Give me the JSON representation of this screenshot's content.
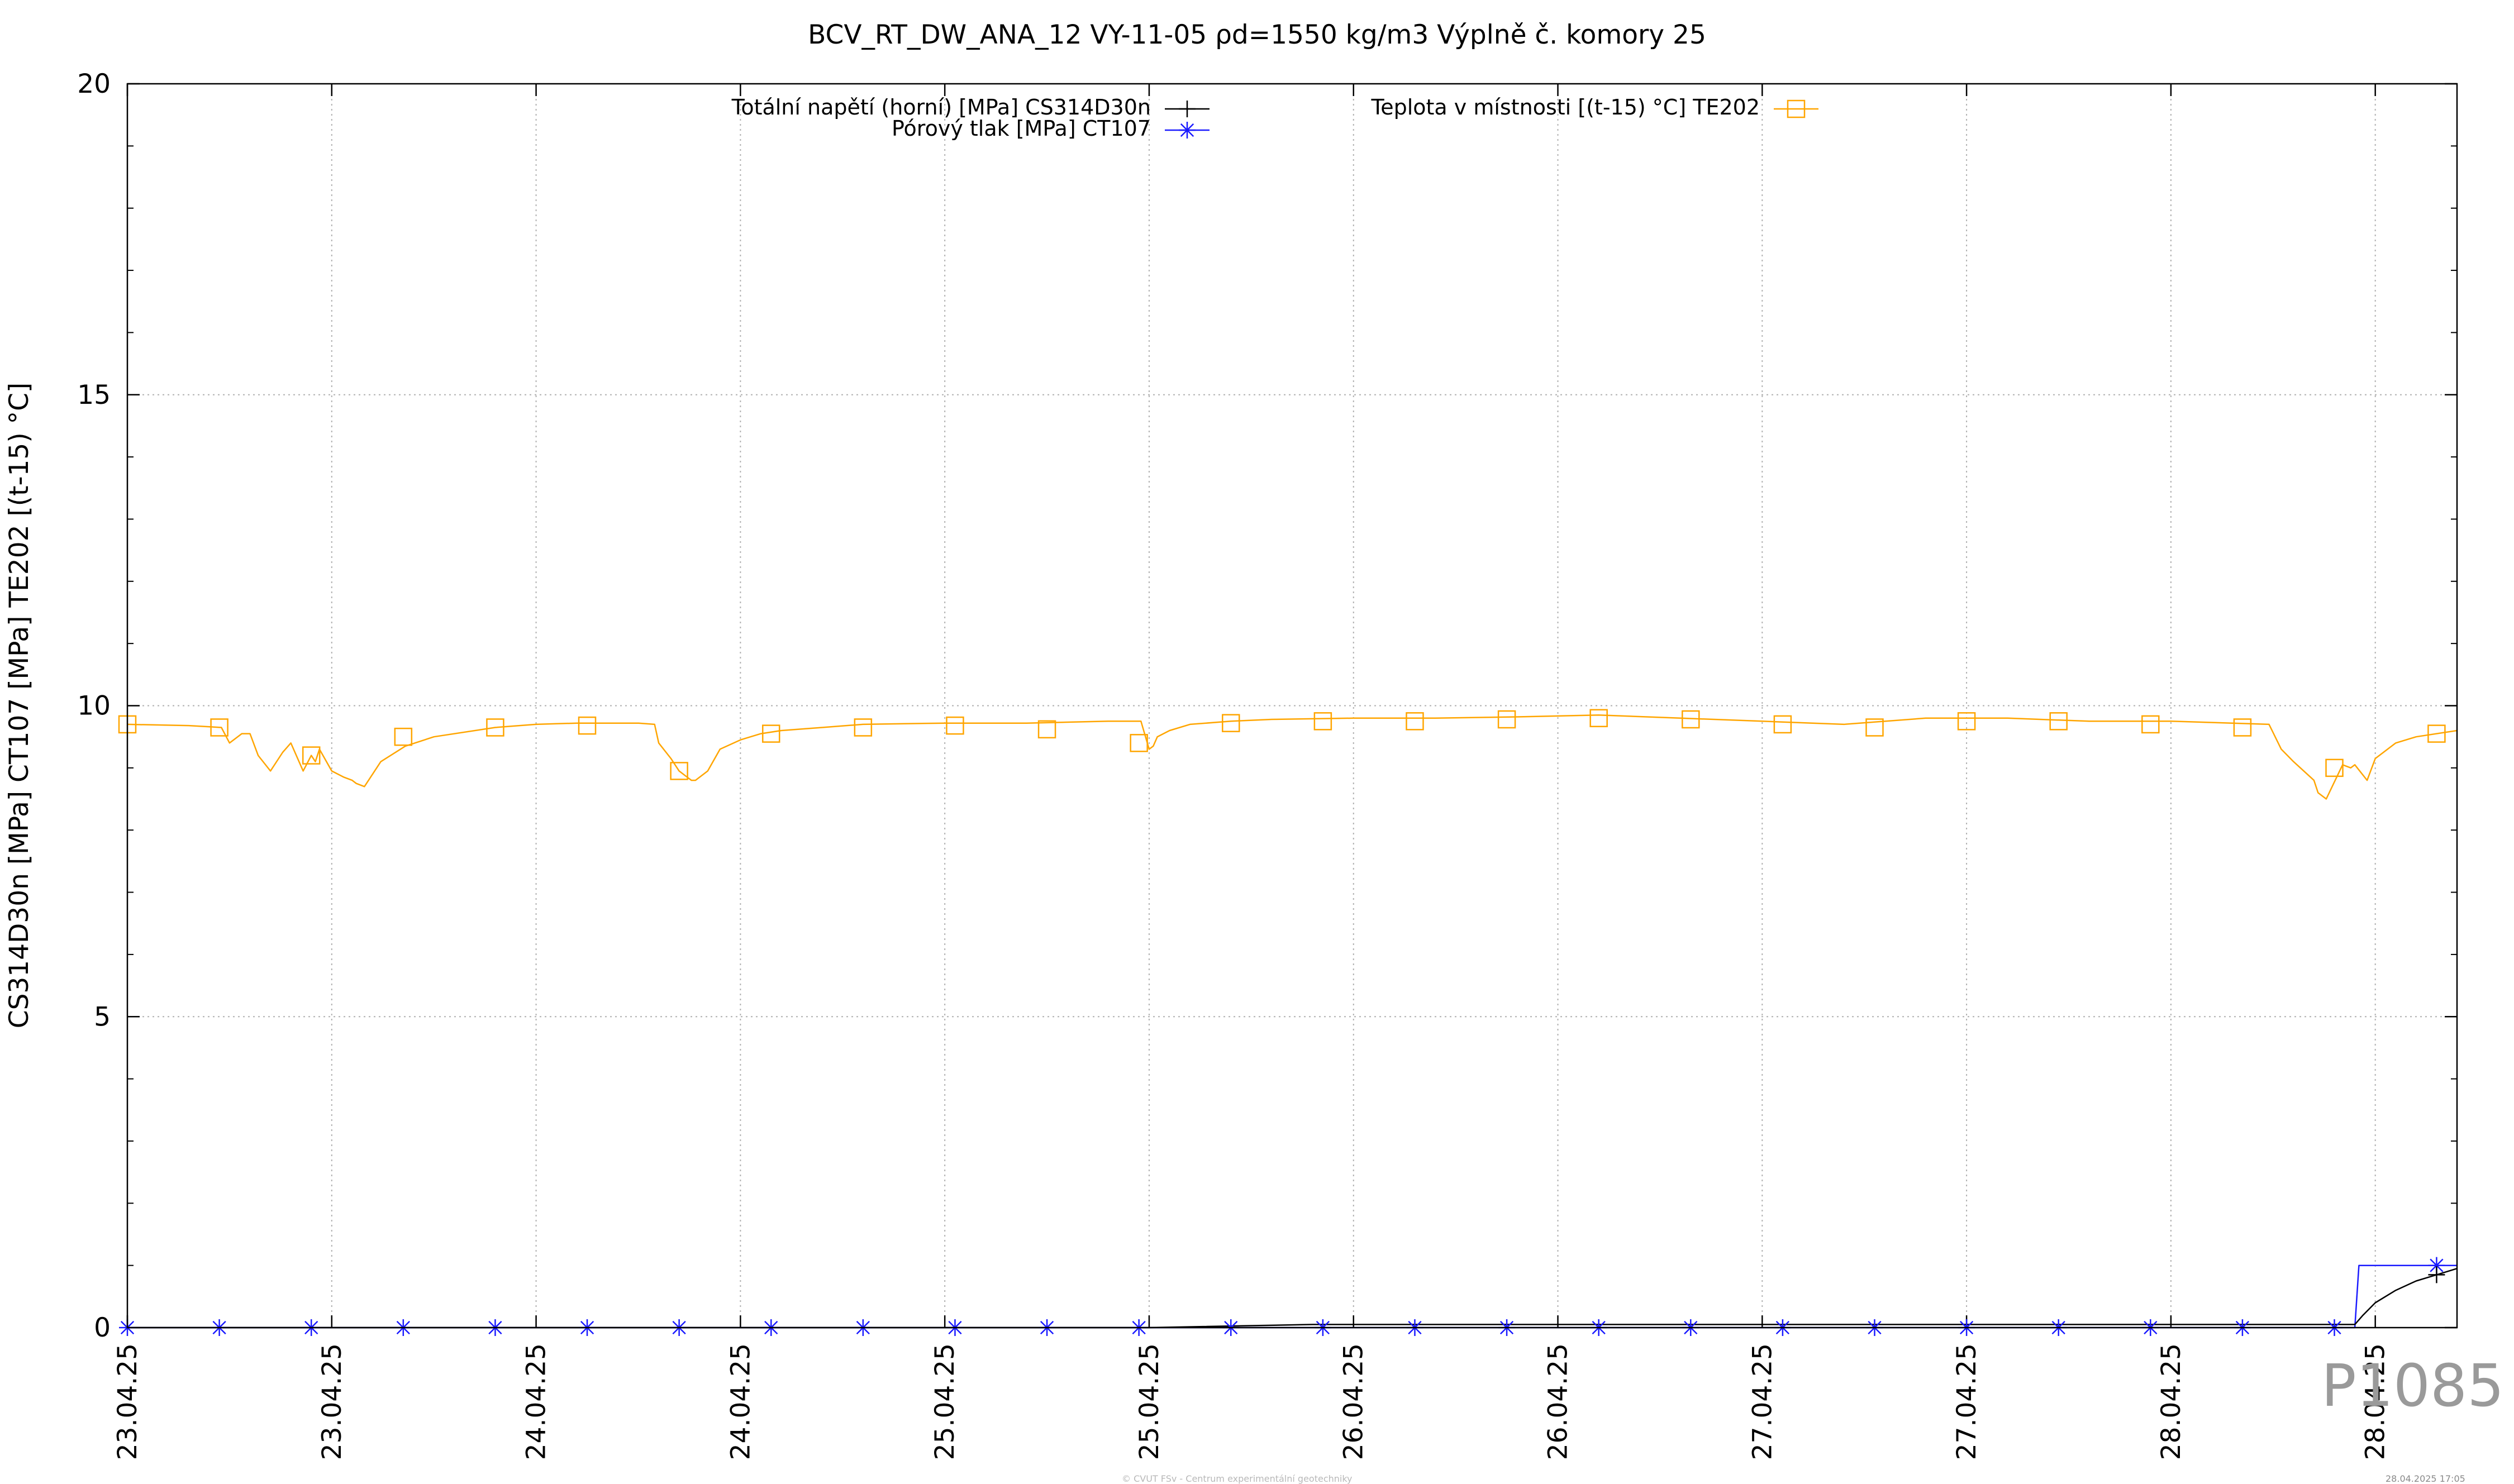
{
  "chart_data": {
    "type": "line",
    "title": "BCV_RT_DW_ANA_12 VY-11-05 ρd=1550 kg/m3 Výplně č. komory 25",
    "ylabel": "CS314D30n [MPa] CT107 [MPa] TE202 [(t-15) °C]",
    "xlabel": "",
    "ylim": [
      0,
      20
    ],
    "xlim": [
      0,
      5.7
    ],
    "yticks": [
      0,
      5,
      10,
      15,
      20
    ],
    "grid": true,
    "legend_placement": "top",
    "x_tick_labels": [
      {
        "x": 0.0,
        "label": "23.04.25"
      },
      {
        "x": 0.5,
        "label": "23.04.25"
      },
      {
        "x": 1.0,
        "label": "24.04.25"
      },
      {
        "x": 1.5,
        "label": "24.04.25"
      },
      {
        "x": 2.0,
        "label": "25.04.25"
      },
      {
        "x": 2.5,
        "label": "25.04.25"
      },
      {
        "x": 3.0,
        "label": "26.04.25"
      },
      {
        "x": 3.5,
        "label": "26.04.25"
      },
      {
        "x": 4.0,
        "label": "27.04.25"
      },
      {
        "x": 4.5,
        "label": "27.04.25"
      },
      {
        "x": 5.0,
        "label": "28.04.25"
      },
      {
        "x": 5.5,
        "label": "28.04.25"
      }
    ],
    "series": [
      {
        "name": "Totální napětí (horní) [MPa] CS314D30n",
        "color": "#000000",
        "marker": "plus",
        "x": [
          0.0,
          0.5,
          1.0,
          1.5,
          2.0,
          2.5,
          2.9,
          3.5,
          4.0,
          4.5,
          5.0,
          5.45,
          5.47,
          5.5,
          5.55,
          5.6,
          5.65,
          5.7
        ],
        "y": [
          0,
          0,
          0,
          0,
          0,
          0,
          0.05,
          0.05,
          0.05,
          0.05,
          0.05,
          0.05,
          0.2,
          0.4,
          0.6,
          0.75,
          0.85,
          0.95
        ]
      },
      {
        "name": "Pórový tlak [MPa] CT107",
        "color": "#1a1aff",
        "marker": "star",
        "x": [
          0.0,
          1.0,
          2.0,
          3.0,
          4.0,
          5.0,
          5.45,
          5.46,
          5.7
        ],
        "y": [
          0,
          0,
          0,
          0,
          0,
          0,
          0,
          1.0,
          1.0
        ]
      },
      {
        "name": "Teplota v místnosti [(t-15) °C] TE202",
        "color": "#ffa500",
        "marker": "square",
        "x": [
          0.0,
          0.15,
          0.23,
          0.25,
          0.28,
          0.3,
          0.32,
          0.35,
          0.38,
          0.4,
          0.42,
          0.43,
          0.45,
          0.46,
          0.47,
          0.5,
          0.53,
          0.55,
          0.56,
          0.58,
          0.62,
          0.68,
          0.75,
          0.9,
          1.0,
          1.1,
          1.25,
          1.29,
          1.3,
          1.33,
          1.35,
          1.37,
          1.38,
          1.39,
          1.42,
          1.45,
          1.5,
          1.55,
          1.6,
          1.7,
          1.8,
          2.0,
          2.2,
          2.4,
          2.48,
          2.5,
          2.51,
          2.52,
          2.55,
          2.6,
          2.7,
          2.8,
          3.0,
          3.2,
          3.4,
          3.6,
          3.8,
          4.0,
          4.2,
          4.4,
          4.6,
          4.8,
          5.0,
          5.15,
          5.24,
          5.27,
          5.3,
          5.35,
          5.36,
          5.38,
          5.42,
          5.44,
          5.45,
          5.48,
          5.5,
          5.55,
          5.6,
          5.7
        ],
        "y": [
          9.7,
          9.68,
          9.65,
          9.4,
          9.55,
          9.55,
          9.2,
          8.95,
          9.25,
          9.4,
          9.1,
          8.95,
          9.2,
          9.1,
          9.3,
          8.95,
          8.85,
          8.8,
          8.75,
          8.7,
          9.1,
          9.35,
          9.5,
          9.65,
          9.7,
          9.72,
          9.72,
          9.7,
          9.4,
          9.15,
          8.95,
          8.85,
          8.8,
          8.8,
          8.95,
          9.3,
          9.45,
          9.55,
          9.6,
          9.65,
          9.7,
          9.72,
          9.72,
          9.75,
          9.75,
          9.3,
          9.35,
          9.5,
          9.6,
          9.7,
          9.75,
          9.78,
          9.8,
          9.8,
          9.82,
          9.85,
          9.8,
          9.75,
          9.7,
          9.8,
          9.8,
          9.75,
          9.75,
          9.72,
          9.7,
          9.3,
          9.1,
          8.8,
          8.6,
          8.5,
          9.05,
          9.0,
          9.05,
          8.8,
          9.15,
          9.4,
          9.5,
          9.6
        ]
      }
    ],
    "markers": {
      "Totální napětí (horní) [MPa] CS314D30n": [
        [
          5.65,
          0.85
        ]
      ],
      "Pórový tlak [MPa] CT107": [
        [
          0.0,
          0
        ],
        [
          0.225,
          0
        ],
        [
          0.45,
          0
        ],
        [
          0.675,
          0
        ],
        [
          0.9,
          0
        ],
        [
          1.125,
          0
        ],
        [
          1.35,
          0
        ],
        [
          1.575,
          0
        ],
        [
          1.8,
          0
        ],
        [
          2.025,
          0
        ],
        [
          2.25,
          0
        ],
        [
          2.475,
          0
        ],
        [
          2.7,
          0
        ],
        [
          2.925,
          0
        ],
        [
          3.15,
          0
        ],
        [
          3.375,
          0
        ],
        [
          3.6,
          0
        ],
        [
          3.825,
          0
        ],
        [
          4.05,
          0
        ],
        [
          4.275,
          0
        ],
        [
          4.5,
          0
        ],
        [
          4.725,
          0
        ],
        [
          4.95,
          0
        ],
        [
          5.175,
          0
        ],
        [
          5.4,
          0
        ],
        [
          5.65,
          1.0
        ]
      ],
      "Teplota v místnosti [(t-15) °C] TE202": [
        [
          0.0,
          9.7
        ],
        [
          0.225,
          9.65
        ],
        [
          0.45,
          9.2
        ],
        [
          0.675,
          9.5
        ],
        [
          0.9,
          9.65
        ],
        [
          1.125,
          9.68
        ],
        [
          1.35,
          8.95
        ],
        [
          1.575,
          9.55
        ],
        [
          1.8,
          9.65
        ],
        [
          2.025,
          9.68
        ],
        [
          2.25,
          9.62
        ],
        [
          2.475,
          9.4
        ],
        [
          2.7,
          9.72
        ],
        [
          2.925,
          9.75
        ],
        [
          3.15,
          9.75
        ],
        [
          3.375,
          9.78
        ],
        [
          3.6,
          9.8
        ],
        [
          3.825,
          9.78
        ],
        [
          4.05,
          9.7
        ],
        [
          4.275,
          9.65
        ],
        [
          4.5,
          9.75
        ],
        [
          4.725,
          9.75
        ],
        [
          4.95,
          9.7
        ],
        [
          5.175,
          9.65
        ],
        [
          5.4,
          9.0
        ],
        [
          5.65,
          9.55
        ]
      ]
    }
  },
  "watermark": "P1085",
  "footer_left": "© CVUT FSv - Centrum experimentální geotechniky",
  "footer_right": "28.04.2025 17:05"
}
